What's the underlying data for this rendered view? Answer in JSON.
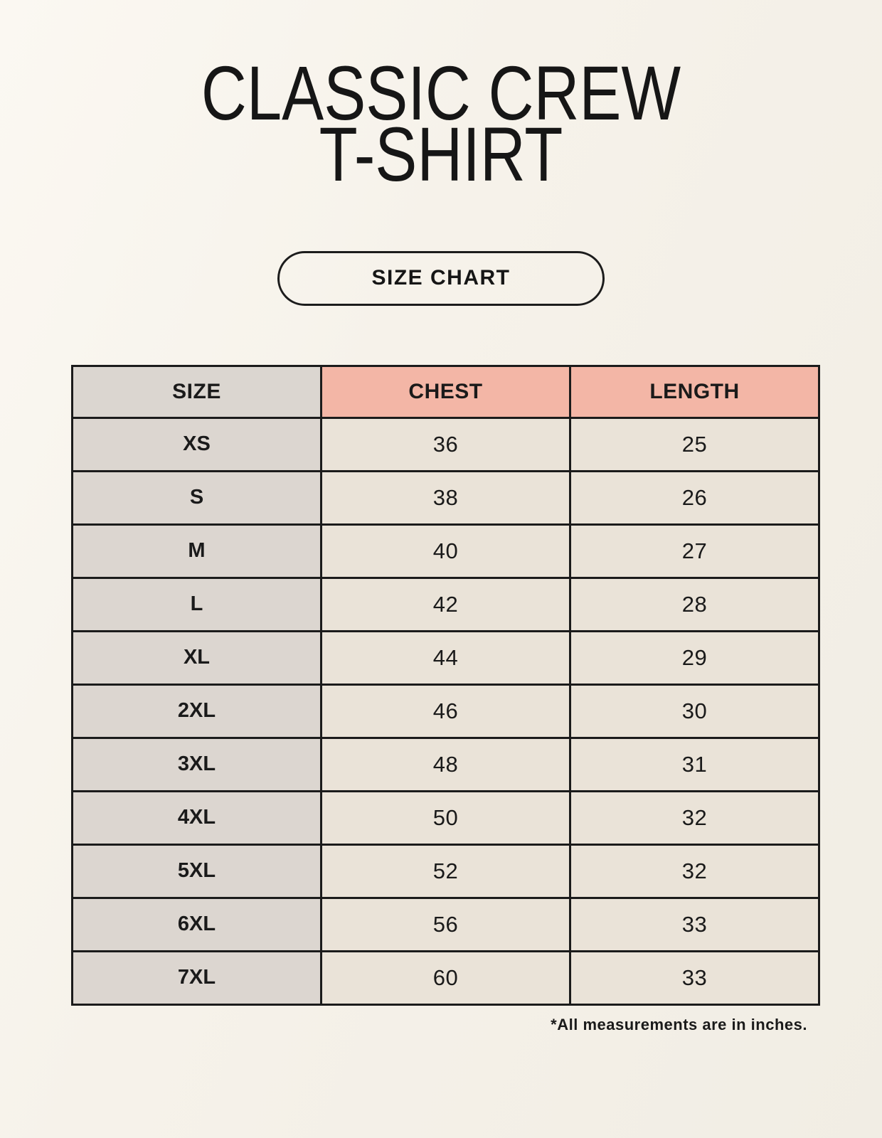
{
  "header": {
    "title_line1": "CLASSIC CREW",
    "title_line2": "T-SHIRT",
    "size_chart_label": "SIZE CHART"
  },
  "footer": {
    "note": "*All measurements are in inches."
  },
  "colors": {
    "background": "#f6f2ea",
    "table_border": "#1b1b1b",
    "header_size_bg": "#dbd6d0",
    "header_measure_bg": "#f3b6a6",
    "row_label_bg": "#dcd6d0",
    "row_value_bg": "#eae3d8",
    "text": "#1a1a1a"
  },
  "chart_data": {
    "type": "table",
    "title": "Classic Crew T-Shirt Size Chart",
    "columns": [
      "SIZE",
      "CHEST",
      "LENGTH"
    ],
    "rows": [
      [
        "XS",
        "36",
        "25"
      ],
      [
        "S",
        "38",
        "26"
      ],
      [
        "M",
        "40",
        "27"
      ],
      [
        "L",
        "42",
        "28"
      ],
      [
        "XL",
        "44",
        "29"
      ],
      [
        "2XL",
        "46",
        "30"
      ],
      [
        "3XL",
        "48",
        "31"
      ],
      [
        "4XL",
        "50",
        "32"
      ],
      [
        "5XL",
        "52",
        "32"
      ],
      [
        "6XL",
        "56",
        "33"
      ],
      [
        "7XL",
        "60",
        "33"
      ]
    ],
    "units": "inches"
  }
}
